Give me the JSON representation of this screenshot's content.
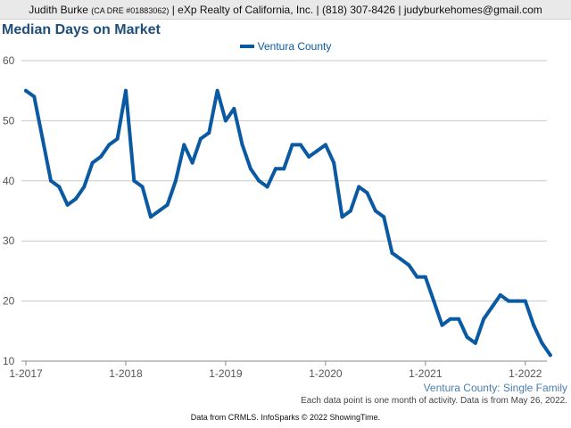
{
  "header": {
    "agent": "Judith Burke",
    "license": "(CA DRE #01883062)",
    "rest": "| eXp Realty of California, Inc. | (818) 307-8426 | judyburkehomes@gmail.com"
  },
  "title": "Median Days on Market",
  "subtitle": "Ventura County: Single Family",
  "note": "Each data point is one month of activity. Data is from May 26, 2022.",
  "source": "Data from CRMLS. InfoSparks © 2022 ShowingTime.",
  "colors": {
    "series": "#0a5aa3",
    "grid": "#c8c8c8",
    "axis": "#888888",
    "tick_text": "#555555"
  },
  "chart_data": {
    "type": "line",
    "title": "Median Days on Market",
    "xlabel": "",
    "ylabel": "",
    "ylim": [
      10,
      60
    ],
    "yticks": [
      10,
      20,
      30,
      40,
      50,
      60
    ],
    "xticks": [
      "1-2017",
      "1-2018",
      "1-2019",
      "1-2020",
      "1-2021",
      "1-2022"
    ],
    "grid": true,
    "legend_position": "top-center",
    "series": [
      {
        "name": "Ventura County",
        "start": "2017-01",
        "values": [
          55,
          54,
          47,
          40,
          39,
          36,
          37,
          39,
          43,
          44,
          46,
          47,
          55,
          40,
          39,
          34,
          35,
          36,
          40,
          46,
          43,
          47,
          48,
          55,
          50,
          52,
          46,
          42,
          40,
          39,
          42,
          42,
          46,
          46,
          44,
          45,
          46,
          43,
          34,
          35,
          39,
          38,
          35,
          34,
          28,
          27,
          26,
          24,
          24,
          20,
          16,
          17,
          17,
          14,
          13,
          17,
          19,
          21,
          20,
          20,
          20,
          16,
          13,
          11
        ]
      }
    ]
  }
}
